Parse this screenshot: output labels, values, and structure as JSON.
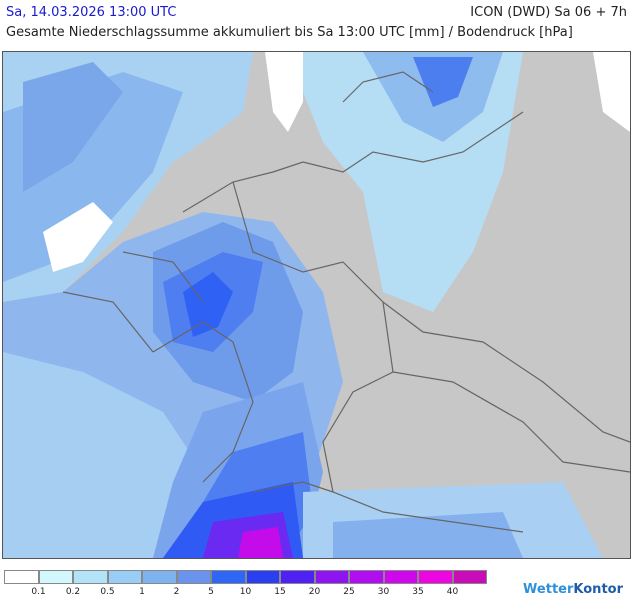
{
  "header": {
    "date_time": "Sa, 14.03.2026 13:00 UTC",
    "model_run": "ICON (DWD) Sa 06 + 7h",
    "product_title": "Gesamte Niederschlagssumme akkumuliert bis Sa 13:00 UTC [mm] / Bodendruck [hPa]"
  },
  "legend": {
    "labels": [
      "0.1",
      "0.2",
      "0.5",
      "1",
      "2",
      "5",
      "10",
      "15",
      "20",
      "25",
      "30",
      "35",
      "40"
    ],
    "colors": [
      "#ffffff",
      "#d2f7fc",
      "#b3e3f7",
      "#98cef5",
      "#7fb3f0",
      "#6a93ed",
      "#2e66f5",
      "#2a3ff0",
      "#4f21f2",
      "#8f14f2",
      "#b00ef0",
      "#cf08ec",
      "#ee06e2",
      "#c70cb8"
    ]
  },
  "colors": {
    "land": "#c7c7c7",
    "sea": "#c7c7c7",
    "snow_white": "#ffffff"
  },
  "brand": {
    "name_part1": "Wetter",
    "name_part2": "Kontor"
  }
}
